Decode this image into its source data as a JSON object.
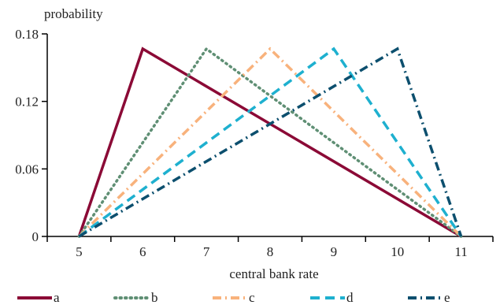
{
  "chart_data": {
    "type": "line",
    "xlabel": "central bank rate",
    "ylabel": "probability",
    "xlim": [
      4.5,
      11.5
    ],
    "ylim": [
      0,
      0.18
    ],
    "xticks": [
      5,
      6,
      7,
      8,
      9,
      10,
      11
    ],
    "xtick_labels": [
      "5",
      "6",
      "7",
      "8",
      "9",
      "10",
      "11"
    ],
    "yticks": [
      0,
      0.06,
      0.12,
      0.18
    ],
    "ytick_labels": [
      "0",
      "0.06",
      "0.12",
      "0.18"
    ],
    "grid": false,
    "legend_position": "bottom",
    "series": [
      {
        "name": "a",
        "color": "#8b0a36",
        "dash": "solid",
        "x": [
          5,
          6,
          11
        ],
        "y": [
          0,
          0.1667,
          0
        ]
      },
      {
        "name": "b",
        "color": "#5f8f74",
        "dash": "dotted",
        "x": [
          5,
          7,
          11
        ],
        "y": [
          0,
          0.1667,
          0
        ]
      },
      {
        "name": "c",
        "color": "#f8b27c",
        "dash": "dash-dot",
        "x": [
          5,
          8,
          11
        ],
        "y": [
          0,
          0.1667,
          0
        ]
      },
      {
        "name": "d",
        "color": "#1eb0cf",
        "dash": "dashed",
        "x": [
          5,
          9,
          11
        ],
        "y": [
          0,
          0.1667,
          0
        ]
      },
      {
        "name": "e",
        "color": "#0c4f6e",
        "dash": "dash-dot",
        "x": [
          5,
          10,
          11
        ],
        "y": [
          0,
          0.1667,
          0
        ]
      }
    ]
  }
}
